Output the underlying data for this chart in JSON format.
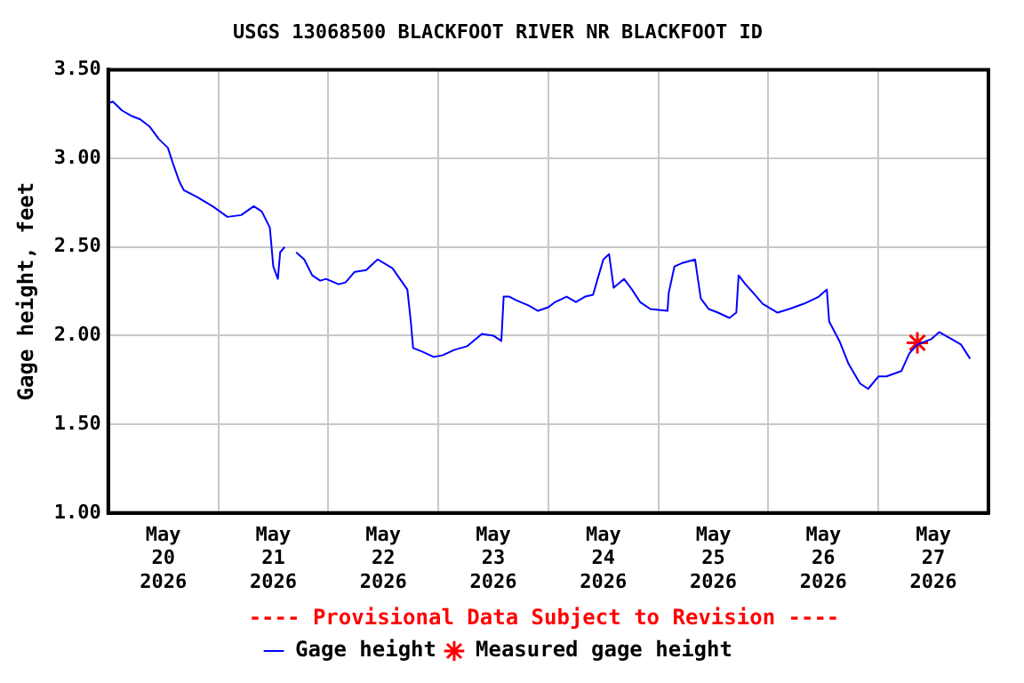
{
  "chart_data": {
    "type": "line",
    "title": "USGS 13068500 BLACKFOOT RIVER NR BLACKFOOT ID",
    "ylabel": "Gage height, feet",
    "annotations": [
      "---- Provisional Data Subject to Revision ----"
    ],
    "xlim": [
      "2026-05-19T12:00",
      "2026-05-27T12:00"
    ],
    "xticks": [
      {
        "value": "2026-05-20",
        "label": "May 20 2026"
      },
      {
        "value": "2026-05-20T12:00",
        "label": null
      },
      {
        "value": "2026-05-21",
        "label": "May 21 2026"
      },
      {
        "value": "2026-05-21T12:00",
        "label": null
      },
      {
        "value": "2026-05-22",
        "label": "May 22 2026"
      },
      {
        "value": "2026-05-22T12:00",
        "label": null
      },
      {
        "value": "2026-05-23",
        "label": "May 23 2026"
      },
      {
        "value": "2026-05-23T12:00",
        "label": null
      },
      {
        "value": "2026-05-24",
        "label": "May 24 2026"
      },
      {
        "value": "2026-05-24T12:00",
        "label": null
      },
      {
        "value": "2026-05-25",
        "label": "May 25 2026"
      },
      {
        "value": "2026-05-25T12:00",
        "label": null
      },
      {
        "value": "2026-05-26",
        "label": "May 26 2026"
      },
      {
        "value": "2026-05-26T12:00",
        "label": null
      },
      {
        "value": "2026-05-27",
        "label": "May 27 2026"
      }
    ],
    "ylim": [
      1,
      3.5
    ],
    "yticks": [
      {
        "value": 1,
        "label": "1.00"
      },
      {
        "value": 1.5,
        "label": "1.50"
      },
      {
        "value": 2,
        "label": "2.00"
      },
      {
        "value": 2.5,
        "label": "2.50"
      },
      {
        "value": 3,
        "label": "3.00"
      },
      {
        "value": 3.5,
        "label": "3.50"
      }
    ],
    "grid": true,
    "legend": "bottom",
    "series": [
      {
        "name": "Gage height",
        "color": "#0000ff",
        "marker": "none",
        "line_style": "solid",
        "x": [
          "2026-05-19T12:00",
          "2026-05-19T13:00",
          "2026-05-19T15:00",
          "2026-05-19T17:00",
          "2026-05-19T19:00",
          "2026-05-19T21:00",
          "2026-05-19T23:00",
          "2026-05-20T01:00",
          "2026-05-20T02:00",
          "2026-05-20T03:30",
          "2026-05-20T04:30",
          "2026-05-20T07:30",
          "2026-05-20T10:45",
          "2026-05-20T14:00",
          "2026-05-20T17:00",
          "2026-05-20T19:45",
          "2026-05-20T21:30",
          "2026-05-20T23:15",
          "2026-05-21T00:00",
          "2026-05-21T01:00",
          "2026-05-21T01:30",
          "2026-05-21T02:30",
          "2026-05-21T03:30",
          "2026-05-21T05:00",
          "2026-05-21T06:45",
          "2026-05-21T08:30",
          "2026-05-21T10:15",
          "2026-05-21T11:30",
          "2026-05-21T14:15",
          "2026-05-21T15:45",
          "2026-05-21T17:45",
          "2026-05-21T20:15",
          "2026-05-21T22:45",
          "2026-05-22T02:00",
          "2026-05-22T05:15",
          "2026-05-22T06:00",
          "2026-05-22T06:30",
          "2026-05-22T08:30",
          "2026-05-22T11:00",
          "2026-05-22T13:00",
          "2026-05-22T15:30",
          "2026-05-22T18:15",
          "2026-05-22T21:30",
          "2026-05-23T00:00",
          "2026-05-23T01:45",
          "2026-05-23T02:15",
          "2026-05-23T03:30",
          "2026-05-23T05:00",
          "2026-05-23T07:45",
          "2026-05-23T09:45",
          "2026-05-23T12:00",
          "2026-05-23T13:30",
          "2026-05-23T16:00",
          "2026-05-23T18:00",
          "2026-05-23T20:00",
          "2026-05-23T21:45",
          "2026-05-23T22:45",
          "2026-05-24T00:00",
          "2026-05-24T01:15",
          "2026-05-24T02:15",
          "2026-05-24T04:30",
          "2026-05-24T06:15",
          "2026-05-24T08:00",
          "2026-05-24T10:15",
          "2026-05-24T14:00",
          "2026-05-24T14:15",
          "2026-05-24T15:30",
          "2026-05-24T17:15",
          "2026-05-24T20:00",
          "2026-05-24T21:15",
          "2026-05-24T23:00",
          "2026-05-25T01:00",
          "2026-05-25T03:30",
          "2026-05-25T05:00",
          "2026-05-25T05:30",
          "2026-05-25T07:00",
          "2026-05-25T08:45",
          "2026-05-25T10:45",
          "2026-05-25T14:00",
          "2026-05-25T16:30",
          "2026-05-25T19:45",
          "2026-05-25T23:00",
          "2026-05-26T00:45",
          "2026-05-26T01:15",
          "2026-05-26T03:30",
          "2026-05-26T05:30",
          "2026-05-26T08:00",
          "2026-05-26T09:45",
          "2026-05-26T12:00",
          "2026-05-26T13:45",
          "2026-05-26T17:00",
          "2026-05-26T18:45",
          "2026-05-26T20:30",
          "2026-05-26T23:30",
          "2026-05-27T01:15",
          "2026-05-27T04:00",
          "2026-05-27T06:00",
          "2026-05-27T08:00"
        ],
        "values": [
          3.31,
          3.32,
          3.27,
          3.24,
          3.22,
          3.18,
          3.11,
          3.06,
          2.98,
          2.87,
          2.82,
          2.78,
          2.73,
          2.67,
          2.68,
          2.73,
          2.7,
          2.61,
          2.39,
          2.32,
          2.47,
          2.5,
          null,
          2.47,
          2.43,
          2.34,
          2.31,
          2.32,
          2.29,
          2.3,
          2.36,
          2.37,
          2.43,
          2.38,
          2.26,
          2.08,
          1.93,
          1.91,
          1.88,
          1.89,
          1.92,
          1.94,
          2.01,
          2.0,
          1.97,
          2.22,
          2.22,
          2.2,
          2.17,
          2.14,
          2.16,
          2.19,
          2.22,
          2.19,
          2.22,
          2.23,
          2.32,
          2.43,
          2.46,
          2.27,
          2.32,
          2.26,
          2.19,
          2.15,
          2.14,
          2.24,
          2.39,
          2.41,
          2.43,
          2.21,
          2.15,
          2.13,
          2.1,
          2.13,
          2.34,
          2.29,
          2.24,
          2.18,
          2.13,
          2.15,
          2.18,
          2.22,
          2.26,
          2.08,
          1.97,
          1.84,
          1.73,
          1.7,
          1.77,
          1.77,
          1.8,
          1.9,
          1.95,
          1.98,
          2.02,
          1.98,
          1.95,
          1.87
        ]
      },
      {
        "name": "Measured gage height",
        "type": "scatter",
        "color": "#ff0000",
        "marker": "cross",
        "x": [
          "2026-05-26T20:30"
        ],
        "values": [
          1.96
        ]
      }
    ]
  }
}
